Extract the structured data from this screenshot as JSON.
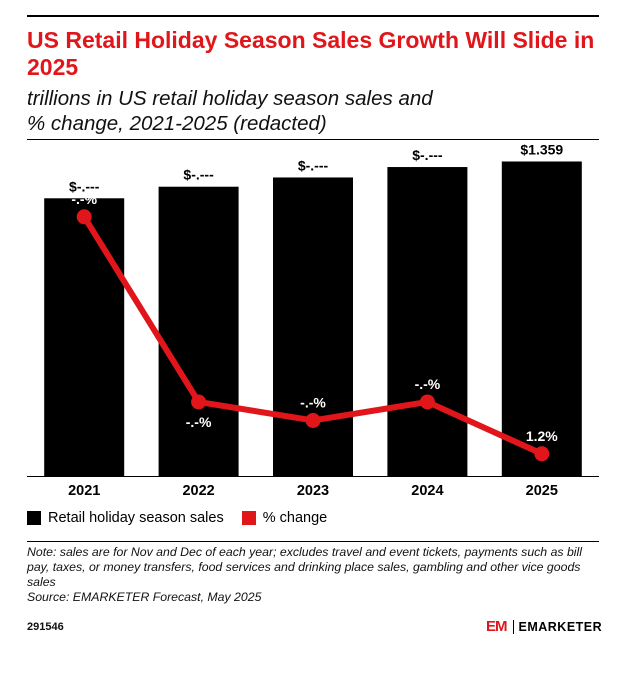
{
  "title": "US Retail Holiday Season Sales Growth Will Slide in 2025",
  "subtitle_line1": "trillions in US retail holiday season sales and",
  "subtitle_line2": "% change, 2021-2025 (redacted)",
  "chart_data": {
    "type": "bar",
    "categories": [
      "2021",
      "2022",
      "2023",
      "2024",
      "2025"
    ],
    "series": [
      {
        "name": "Retail holiday season sales",
        "values": [
          1.2,
          1.25,
          1.29,
          1.335,
          1.359
        ],
        "labels": [
          "$-.---",
          "$-.---",
          "$-.---",
          "$-.---",
          "$1.359"
        ]
      },
      {
        "name": "% change",
        "type": "line",
        "values": [
          14.0,
          4.0,
          3.0,
          4.0,
          1.2
        ],
        "labels": [
          "-.-%",
          "-.-%",
          "-.-%",
          "-.-%",
          "1.2%"
        ]
      }
    ],
    "bar_color": "#000000",
    "line_color": "#e0161b",
    "bar_ylim": [
      0,
      1.4
    ],
    "line_ylim": [
      0,
      17.5
    ]
  },
  "legend": {
    "sales_label": "Retail holiday season sales",
    "change_label": "% change"
  },
  "note": "Note: sales are for Nov and Dec of each year; excludes travel and event tickets, payments such as bill pay, taxes, or money transfers, food services and drinking place sales, gambling and other vice goods sales",
  "source": "Source: EMARKETER Forecast, May 2025",
  "chart_id": "291546",
  "brand": {
    "mark": "EM",
    "name": "EMARKETER"
  }
}
